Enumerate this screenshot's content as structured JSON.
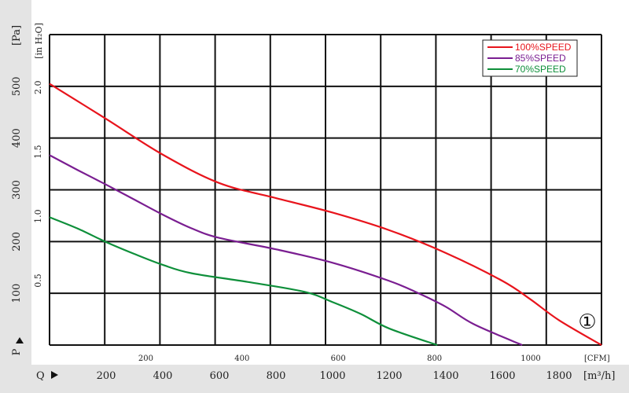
{
  "chart_data": {
    "type": "line",
    "title": "",
    "x_primary": {
      "label": "Q",
      "unit": "[m³/h]",
      "ticks": [
        200,
        400,
        600,
        800,
        1000,
        1200,
        1400,
        1600,
        1800
      ],
      "range": [
        0,
        1950
      ]
    },
    "x_secondary": {
      "unit": "[CFM]",
      "ticks": [
        200,
        400,
        600,
        800,
        1000
      ],
      "range": [
        0,
        1147
      ]
    },
    "y_primary": {
      "label": "P",
      "unit": "[Pa]",
      "ticks": [
        100,
        200,
        300,
        400,
        500
      ],
      "range": [
        0,
        600
      ]
    },
    "y_secondary": {
      "unit": "[in H₂O]",
      "ticks": [
        "0.5",
        "1.0",
        "1.5",
        "2.0"
      ],
      "values": [
        0.5,
        1.0,
        1.5,
        2.0
      ],
      "range": [
        0,
        2.41
      ]
    },
    "grid": true,
    "legend_position": "top-right",
    "badge": "①",
    "series": [
      {
        "name": "100%SPEED",
        "color": "#e8141c",
        "points": [
          [
            0,
            505
          ],
          [
            200,
            437
          ],
          [
            400,
            368
          ],
          [
            600,
            313
          ],
          [
            800,
            284
          ],
          [
            1000,
            256
          ],
          [
            1200,
            222
          ],
          [
            1400,
            178
          ],
          [
            1600,
            124
          ],
          [
            1700,
            88
          ],
          [
            1800,
            48
          ],
          [
            1950,
            0
          ]
        ]
      },
      {
        "name": "85%SPEED",
        "color": "#7a1e91",
        "points": [
          [
            0,
            367
          ],
          [
            100,
            338
          ],
          [
            200,
            310
          ],
          [
            300,
            281
          ],
          [
            400,
            252
          ],
          [
            500,
            226
          ],
          [
            600,
            207
          ],
          [
            800,
            185
          ],
          [
            1000,
            159
          ],
          [
            1200,
            124
          ],
          [
            1300,
            101
          ],
          [
            1400,
            74
          ],
          [
            1500,
            40
          ],
          [
            1670,
            0
          ]
        ]
      },
      {
        "name": "70%SPEED",
        "color": "#0e8f3a",
        "points": [
          [
            0,
            247
          ],
          [
            100,
            225
          ],
          [
            200,
            199
          ],
          [
            300,
            176
          ],
          [
            400,
            155
          ],
          [
            500,
            139
          ],
          [
            700,
            122
          ],
          [
            900,
            103
          ],
          [
            1000,
            83
          ],
          [
            1100,
            60
          ],
          [
            1200,
            32
          ],
          [
            1370,
            0
          ]
        ]
      }
    ]
  }
}
